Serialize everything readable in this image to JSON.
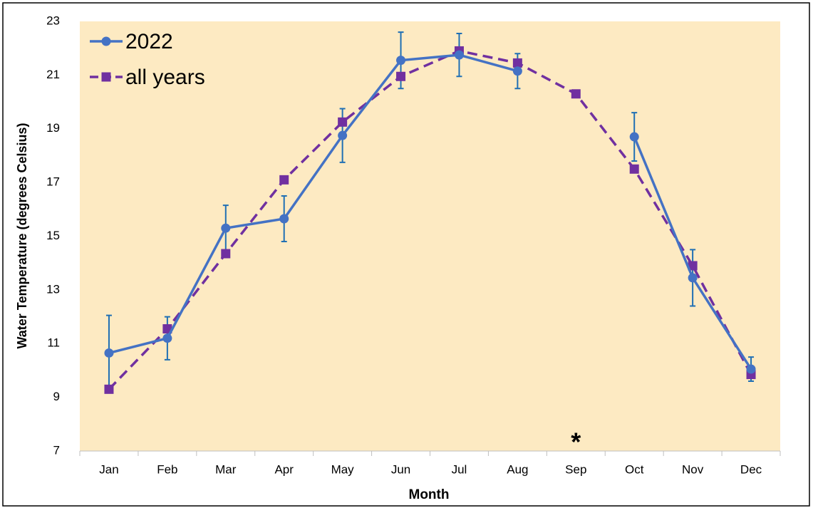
{
  "chart_data": {
    "type": "line",
    "x_label": "Month",
    "y_label": "Water Temperature (degrees Celsius)",
    "categories": [
      "Jan",
      "Feb",
      "Mar",
      "Apr",
      "May",
      "Jun",
      "Jul",
      "Aug",
      "Sep",
      "Oct",
      "Nov",
      "Dec"
    ],
    "series": [
      {
        "name": "2022",
        "color": "#4472c4",
        "marker": "circle",
        "dash": false,
        "values": [
          10.65,
          11.2,
          15.3,
          15.65,
          18.75,
          21.55,
          21.75,
          21.15,
          null,
          18.7,
          13.45,
          10.05
        ],
        "errors": [
          1.4,
          0.8,
          0.85,
          0.85,
          1.0,
          1.05,
          0.8,
          0.65,
          null,
          0.9,
          1.05,
          0.45
        ]
      },
      {
        "name": "all years",
        "color": "#7030a0",
        "marker": "square",
        "dash": true,
        "values": [
          9.3,
          11.55,
          14.35,
          17.1,
          19.25,
          20.95,
          21.9,
          21.45,
          20.3,
          17.5,
          13.9,
          9.85
        ]
      }
    ],
    "annotations": [
      {
        "text": "*",
        "category": 8
      }
    ],
    "ylim": [
      7,
      23
    ],
    "yticks": [
      7,
      9,
      11,
      13,
      15,
      17,
      19,
      21,
      23
    ],
    "background": "#fdeac2"
  }
}
